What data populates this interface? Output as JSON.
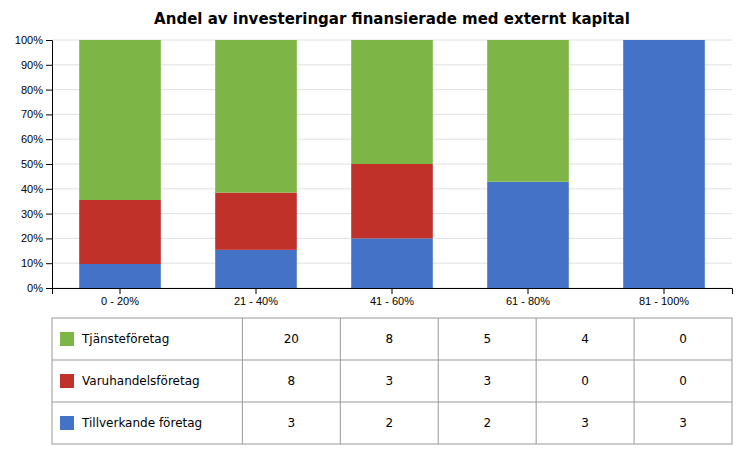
{
  "chart_data": {
    "type": "bar",
    "title": "Andel av investeringar finansierade med externt kapital",
    "categories": [
      "0 - 20%",
      "21 - 40%",
      "41 - 60%",
      "61 - 80%",
      "81 - 100%"
    ],
    "stacked": true,
    "grid": true,
    "ylim": [
      0,
      100
    ],
    "yticks": [
      {
        "value": 0,
        "label": "0%"
      },
      {
        "value": 10,
        "label": "10%"
      },
      {
        "value": 20,
        "label": "20%"
      },
      {
        "value": 30,
        "label": "30%"
      },
      {
        "value": 40,
        "label": "40%"
      },
      {
        "value": 50,
        "label": "50%"
      },
      {
        "value": 60,
        "label": "60%"
      },
      {
        "value": 70,
        "label": "70%"
      },
      {
        "value": 80,
        "label": "80%"
      },
      {
        "value": 90,
        "label": "90%"
      },
      {
        "value": 100,
        "label": "100%"
      }
    ],
    "series": [
      {
        "name": "Tjänsteföretag",
        "color": "#7DB646",
        "values": [
          64.51612903225806,
          61.53846153846154,
          50,
          57.14285714285714,
          0
        ],
        "counts": [
          20,
          8,
          5,
          4,
          0
        ]
      },
      {
        "name": "Varuhandelsföretag",
        "color": "#C0312A",
        "values": [
          25.806451612903224,
          23.076923076923077,
          30,
          0,
          0
        ],
        "counts": [
          8,
          3,
          3,
          0,
          0
        ]
      },
      {
        "name": "Tillverkande företag",
        "color": "#4472C4",
        "values": [
          9.67741935483871,
          15.384615384615385,
          20,
          42.857142857142854,
          100
        ],
        "counts": [
          3,
          2,
          2,
          3,
          3
        ]
      }
    ]
  }
}
